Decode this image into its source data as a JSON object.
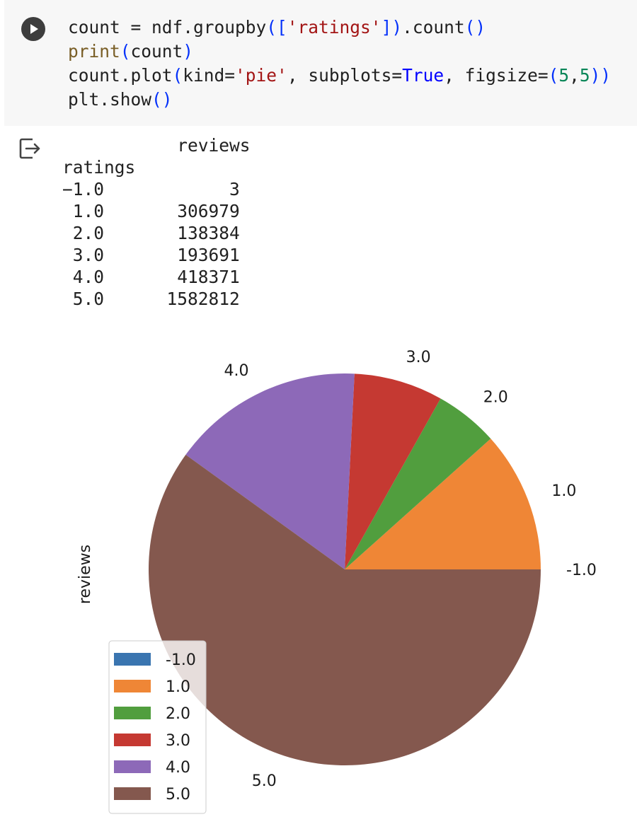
{
  "code_cell": {
    "run_label": "",
    "lines": [
      [
        {
          "text": "count = ndf.groupby",
          "cls": ""
        },
        {
          "text": "(",
          "cls": "c-paren"
        },
        {
          "text": "[",
          "cls": "c-paren"
        },
        {
          "text": "'ratings'",
          "cls": "c-str"
        },
        {
          "text": "]",
          "cls": "c-paren"
        },
        {
          "text": ")",
          "cls": "c-paren"
        },
        {
          "text": ".count",
          "cls": ""
        },
        {
          "text": "()",
          "cls": "c-paren"
        }
      ],
      [
        {
          "text": "print",
          "cls": "c-func"
        },
        {
          "text": "(",
          "cls": "c-paren"
        },
        {
          "text": "count",
          "cls": ""
        },
        {
          "text": ")",
          "cls": "c-paren"
        }
      ],
      [
        {
          "text": "count.plot",
          "cls": ""
        },
        {
          "text": "(",
          "cls": "c-paren"
        },
        {
          "text": "kind=",
          "cls": ""
        },
        {
          "text": "'pie'",
          "cls": "c-str"
        },
        {
          "text": ", subplots=",
          "cls": ""
        },
        {
          "text": "True",
          "cls": "c-kw"
        },
        {
          "text": ", figsize=",
          "cls": ""
        },
        {
          "text": "(",
          "cls": "c-paren"
        },
        {
          "text": "5",
          "cls": "c-num"
        },
        {
          "text": ",",
          "cls": ""
        },
        {
          "text": "5",
          "cls": "c-num"
        },
        {
          "text": "))",
          "cls": "c-paren"
        }
      ],
      [
        {
          "text": "plt.show",
          "cls": ""
        },
        {
          "text": "()",
          "cls": "c-paren"
        }
      ]
    ]
  },
  "output": {
    "text_lines": [
      "           reviews",
      "ratings",
      "−1.0            3",
      " 1.0       306979",
      " 2.0       138384",
      " 3.0       193691",
      " 4.0       418371",
      " 5.0      1582812"
    ]
  },
  "chart_data": {
    "type": "pie",
    "ylabel": "reviews",
    "labels": [
      "-1.0",
      "1.0",
      "2.0",
      "3.0",
      "4.0",
      "5.0"
    ],
    "values": [
      3,
      306979,
      138384,
      193691,
      418371,
      1582812
    ],
    "colors": [
      "#3a75b0",
      "#ef8636",
      "#519e3e",
      "#c53932",
      "#8d69b8",
      "#84584e"
    ],
    "start_angle_deg": 0,
    "direction": "counterclockwise",
    "legend": {
      "placement": "lower-left",
      "entries": [
        "-1.0",
        "1.0",
        "2.0",
        "3.0",
        "4.0",
        "5.0"
      ]
    }
  }
}
